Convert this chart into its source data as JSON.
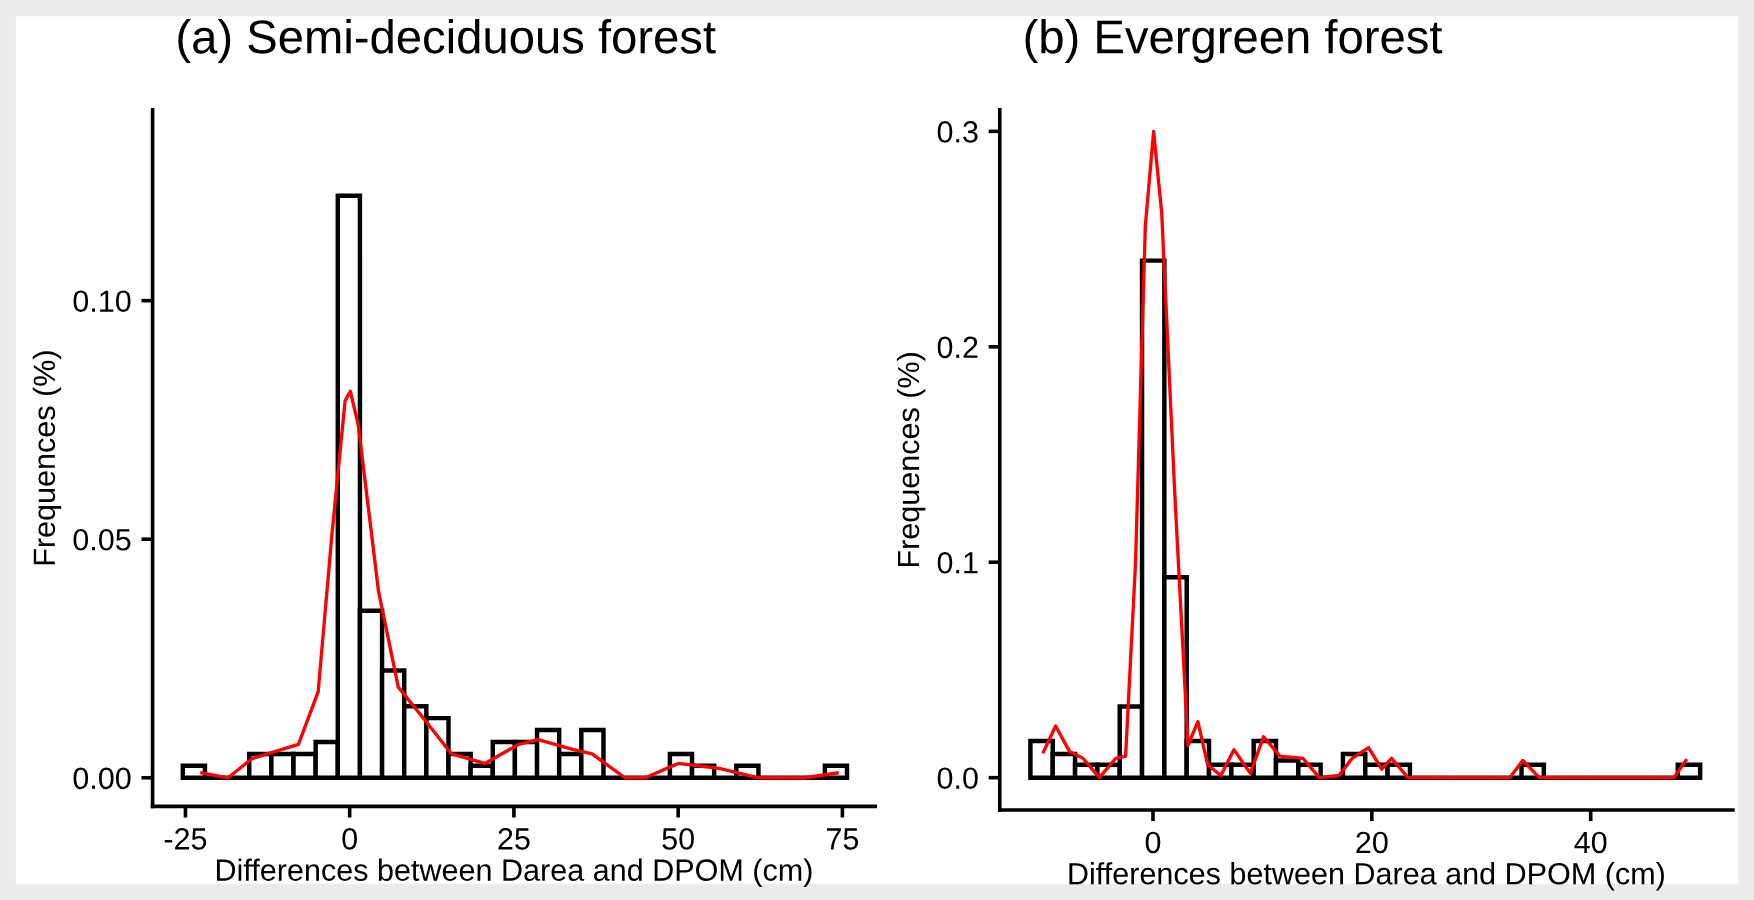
{
  "chart_data": [
    {
      "type": "histogram",
      "title": "(a) Semi-deciduous forest",
      "xlabel": "Differences between Darea and DPOM (cm)",
      "ylabel": "Frequences (%)",
      "xlim": [
        -30,
        80
      ],
      "xticks": [
        -25,
        0,
        25,
        50,
        75
      ],
      "ylim": [
        -0.006,
        0.14
      ],
      "yticks": [
        {
          "value": 0,
          "label": "0.00"
        },
        {
          "value": 0.05,
          "label": "0.05"
        },
        {
          "value": 0.1,
          "label": "0.10"
        }
      ],
      "grid": false,
      "legend": false,
      "series": [
        {
          "color": "#000000",
          "bins": [
            -25.4,
            -22.03,
            -18.66,
            -15.29,
            -11.92,
            -8.55,
            -5.18,
            -1.81,
            1.56,
            4.93,
            8.3,
            11.67,
            15.04,
            18.41,
            21.78,
            25.15,
            28.52,
            31.89,
            35.26,
            38.63,
            42.0,
            45.37,
            48.74,
            52.11,
            55.48,
            58.85,
            62.22,
            65.59,
            68.96,
            72.33,
            75.7
          ],
          "values": [
            0.0025,
            0,
            0,
            0.005,
            0.005,
            0.005,
            0.0075,
            0.122,
            0.035,
            0.0225,
            0.015,
            0.0125,
            0.005,
            0.0025,
            0.0075,
            0.0075,
            0.01,
            0.005,
            0.01,
            0,
            0,
            0,
            0.005,
            0.0025,
            0,
            0.0025,
            0,
            0,
            0,
            0.0025
          ]
        },
        {
          "type": "line",
          "color": "#ff0000",
          "x": [
            -22.5,
            -18.5,
            -14.9,
            -7.8,
            -4.8,
            -2.7,
            -0.7,
            0.1,
            1.3,
            4.4,
            7.4,
            11.5,
            15.5,
            20.6,
            25.7,
            28.7,
            33.8,
            36.9,
            41.9,
            45,
            50,
            56.1,
            62.2,
            69.3,
            74.2
          ],
          "values": [
            0.001,
            0,
            0.004,
            0.007,
            0.018,
            0.051,
            0.079,
            0.081,
            0.074,
            0.039,
            0.019,
            0.012,
            0.005,
            0.003,
            0.007,
            0.008,
            0.006,
            0.005,
            0,
            0,
            0.003,
            0.002,
            0,
            0,
            0.001
          ]
        }
      ]
    },
    {
      "type": "histogram",
      "title": "(b) Evergreen forest",
      "xlabel": "Differences between Darea and DPOM (cm)",
      "ylabel": "Frequences (%)",
      "xlim": [
        -14,
        53
      ],
      "xticks": [
        0,
        20,
        40
      ],
      "ylim": [
        -0.015,
        0.31
      ],
      "yticks": [
        {
          "value": 0,
          "label": "0.0"
        },
        {
          "value": 0.1,
          "label": "0.1"
        },
        {
          "value": 0.2,
          "label": "0.2"
        },
        {
          "value": 0.3,
          "label": "0.3"
        }
      ],
      "grid": false,
      "legend": false,
      "series": [
        {
          "color": "#000000",
          "bins": [
            -11.2,
            -9.16,
            -7.12,
            -5.08,
            -3.04,
            -1.0,
            1.04,
            3.08,
            5.12,
            7.16,
            9.2,
            11.24,
            13.28,
            15.32,
            17.36,
            19.4,
            21.44,
            23.48,
            25.52,
            27.56,
            29.6,
            31.64,
            33.68,
            35.72,
            37.76,
            39.8,
            41.84,
            43.88,
            45.92,
            47.96,
            50.0
          ],
          "values": [
            0.017,
            0.011,
            0.006,
            0.006,
            0.033,
            0.24,
            0.093,
            0.017,
            0.006,
            0.006,
            0.017,
            0.008,
            0.006,
            0,
            0.011,
            0.006,
            0.006,
            0,
            0,
            0,
            0,
            0,
            0.006,
            0,
            0,
            0,
            0,
            0,
            0,
            0.006
          ]
        },
        {
          "type": "line",
          "color": "#ff0000",
          "x": [
            -10.0,
            -8.9,
            -7.6,
            -6.4,
            -4.9,
            -3.4,
            -2.5,
            -1.6,
            -0.7,
            0.06,
            0.8,
            2.0,
            3.2,
            4.1,
            5.0,
            6.2,
            7.4,
            8.9,
            10.1,
            11.6,
            13.7,
            15.2,
            17.0,
            18.2,
            19.7,
            20.9,
            21.8,
            23.3,
            32.6,
            33.8,
            35.3,
            47.6,
            48.7
          ],
          "values": [
            0.012,
            0.024,
            0.012,
            0.009,
            0,
            0.009,
            0.01,
            0.099,
            0.256,
            0.3,
            0.262,
            0.131,
            0.015,
            0.026,
            0.006,
            0.001,
            0.013,
            0.002,
            0.019,
            0.01,
            0.009,
            0,
            0.001,
            0.009,
            0.014,
            0.004,
            0.009,
            0,
            0,
            0.008,
            0,
            0,
            0.008
          ]
        }
      ]
    }
  ]
}
